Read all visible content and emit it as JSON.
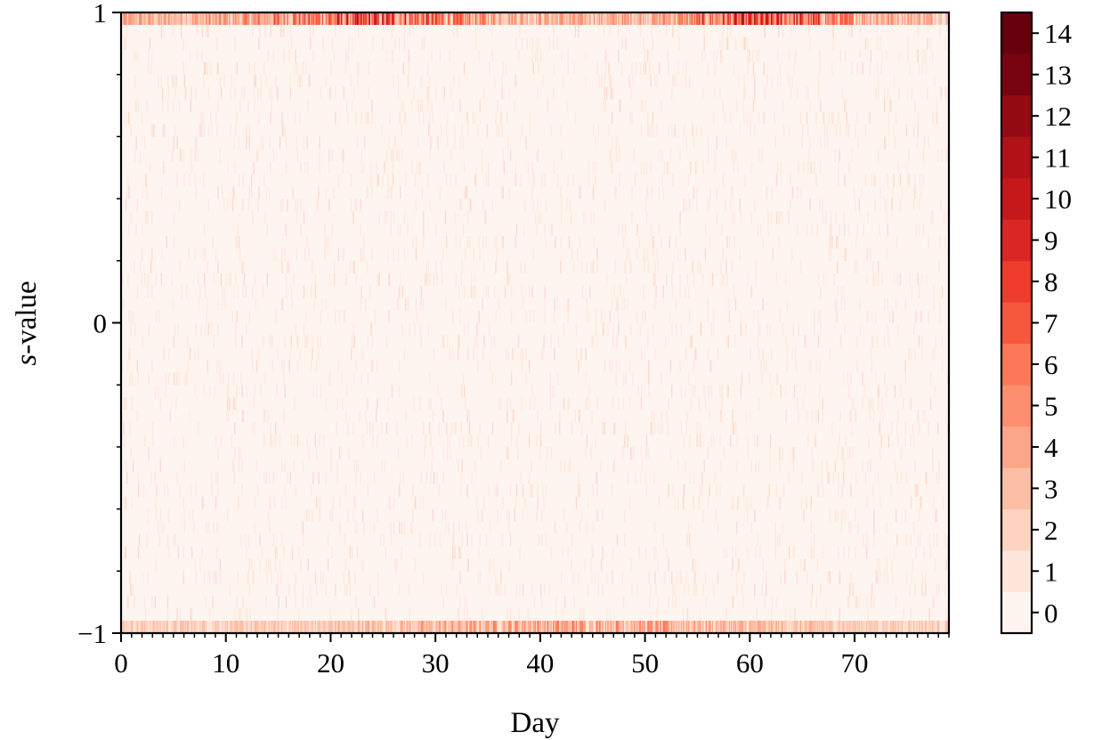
{
  "chart_data": {
    "type": "heatmap",
    "title": "",
    "xlabel": "Day",
    "ylabel_italic": "s",
    "ylabel_rest": "-value",
    "xlim": [
      0,
      79
    ],
    "ylim": [
      -1,
      1
    ],
    "x_ticks": [
      0,
      10,
      20,
      30,
      40,
      50,
      60,
      70
    ],
    "x_tick_labels": [
      "0",
      "10",
      "20",
      "30",
      "40",
      "50",
      "60",
      "70"
    ],
    "y_ticks": [
      -1,
      0,
      1
    ],
    "y_tick_labels": [
      "−1",
      "0",
      "1"
    ],
    "colormap": "Reds",
    "colorbar": {
      "levels": [
        0,
        1,
        2,
        3,
        4,
        5,
        6,
        7,
        8,
        9,
        10,
        11,
        12,
        13,
        14
      ],
      "tick_labels": [
        "0",
        "1",
        "2",
        "3",
        "4",
        "5",
        "6",
        "7",
        "8",
        "9",
        "10",
        "11",
        "12",
        "13",
        "14"
      ],
      "colors": [
        "#fff5f0",
        "#fee6da",
        "#fdd4c2",
        "#fcbea5",
        "#fca689",
        "#fc8f6f",
        "#fb7858",
        "#f6583e",
        "#ef3c2c",
        "#da2723",
        "#c6171b",
        "#b11218",
        "#950b13",
        "#77040f",
        "#67000d"
      ]
    },
    "rows": {
      "top_row": {
        "y_range": [
          0.96,
          1.0
        ],
        "typical_count_range": [
          1,
          14
        ]
      },
      "interior": {
        "y_range": [
          -0.96,
          0.96
        ],
        "typical_count_range": [
          0,
          2
        ]
      },
      "bottom_row": {
        "y_range": [
          -1.0,
          -0.96
        ],
        "typical_count_range": [
          1,
          9
        ]
      }
    },
    "grid": false,
    "legend": "none"
  }
}
